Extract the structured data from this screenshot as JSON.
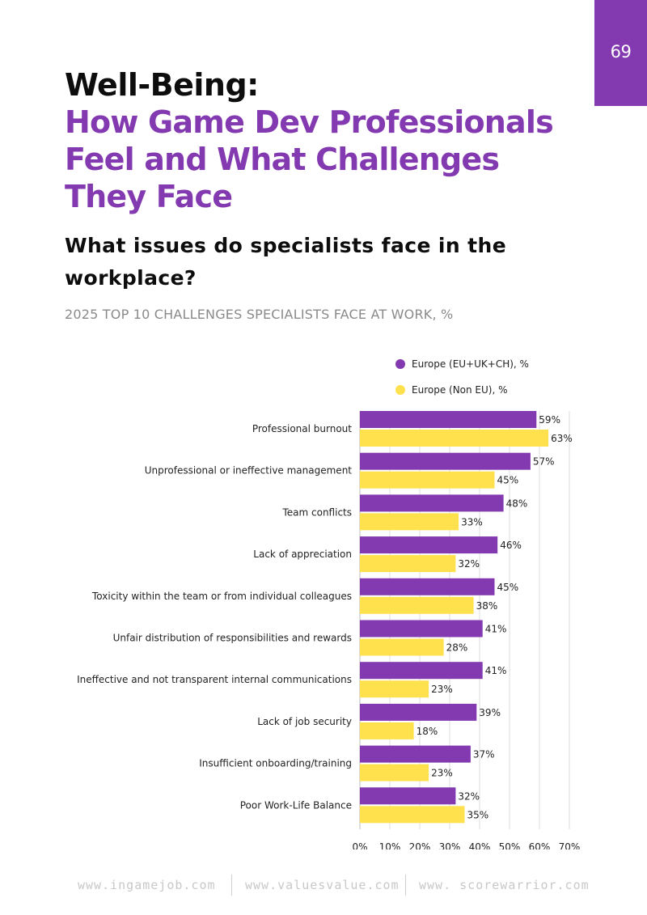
{
  "page_number": "69",
  "title": {
    "line1": "Well-Being:",
    "line2": [
      "How Game Dev Professionals",
      "Feel and What Challenges",
      "They Face"
    ]
  },
  "subtitle": "What issues do specialists face in the workplace?",
  "chart_caption": "2025 TOP 10 CHALLENGES SPECIALISTS FACE AT WORK, %",
  "colors": {
    "accent": "#8339b0",
    "eu": "#8339b0",
    "non_eu": "#ffe14d",
    "grid": "#dcdcdc"
  },
  "chart_data": {
    "type": "bar",
    "orientation": "horizontal",
    "title": "2025 TOP 10 CHALLENGES SPECIALISTS FACE AT WORK, %",
    "categories": [
      "Professional burnout",
      "Unprofessional or ineffective management",
      "Team conflicts",
      "Lack of appreciation",
      "Toxicity within the team or from individual colleagues",
      "Unfair distribution of responsibilities and rewards",
      "Ineffective and not transparent internal communications",
      "Lack of job security",
      "Insufficient onboarding/training",
      "Poor Work-Life Balance"
    ],
    "series": [
      {
        "name": "Europe (EU+UK+CH), %",
        "color": "#8339b0",
        "values": [
          59,
          57,
          48,
          46,
          45,
          41,
          41,
          39,
          37,
          32
        ]
      },
      {
        "name": "Europe (Non EU), %",
        "color": "#ffe14d",
        "values": [
          63,
          45,
          33,
          32,
          38,
          28,
          23,
          18,
          23,
          35
        ]
      }
    ],
    "xlim": [
      0,
      70
    ],
    "xticks": [
      "0%",
      "10%",
      "20%",
      "30%",
      "40%",
      "50%",
      "60%",
      "70%"
    ],
    "xlabel": "",
    "ylabel": "",
    "grid": true,
    "legend": "top-right"
  },
  "footer": {
    "links": [
      "www.ingamejob.com",
      "www.valuesvalue.com",
      "www. scorewarrior.com"
    ]
  }
}
